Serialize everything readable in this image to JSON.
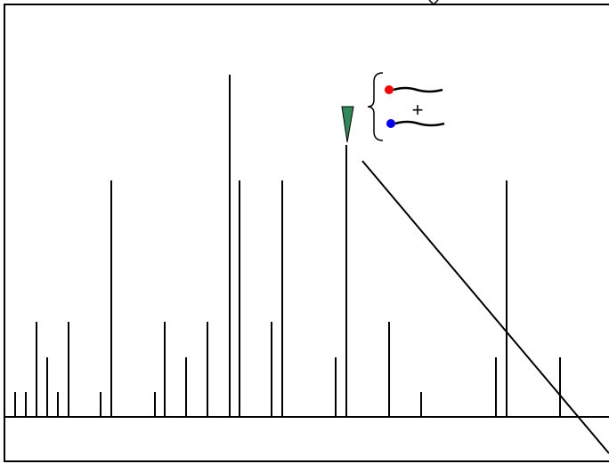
{
  "annotation": {
    "label": "+"
  }
}
